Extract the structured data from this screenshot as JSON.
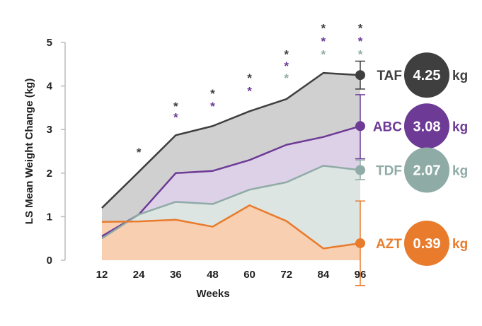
{
  "chart_data": {
    "type": "area",
    "xlabel": "Weeks",
    "ylabel": "LS Mean Weight Change (kg)",
    "x": [
      12,
      24,
      36,
      48,
      60,
      72,
      84,
      96
    ],
    "x_ticks": [
      "12",
      "24",
      "36",
      "48",
      "60",
      "72",
      "84",
      "96"
    ],
    "y_ticks": [
      "0",
      "1",
      "2",
      "3",
      "4",
      "5"
    ],
    "ylim": [
      0,
      5
    ],
    "xlim": [
      0,
      96
    ],
    "grid": false,
    "series": [
      {
        "name": "TAF",
        "values": [
          1.2,
          2.03,
          2.87,
          3.08,
          3.42,
          3.7,
          4.3,
          4.25
        ],
        "final_value": "4.25",
        "unit": "kg",
        "color": "#3f3f3f",
        "fill": "#d0d0d0",
        "error_bar_96": [
          3.93,
          4.57
        ]
      },
      {
        "name": "ABC",
        "values": [
          0.55,
          1.05,
          2.0,
          2.05,
          2.3,
          2.65,
          2.83,
          3.08
        ],
        "final_value": "3.08",
        "unit": "kg",
        "color": "#6d3a96",
        "fill": "#ddd1e8",
        "error_bar_96": [
          2.33,
          3.8
        ]
      },
      {
        "name": "TDF",
        "values": [
          0.5,
          1.05,
          1.34,
          1.29,
          1.62,
          1.79,
          2.17,
          2.07
        ],
        "final_value": "2.07",
        "unit": "kg",
        "color": "#8faba6",
        "fill": "#dde5e3",
        "error_bar_96": [
          1.85,
          2.3
        ]
      },
      {
        "name": "AZT",
        "values": [
          0.88,
          0.89,
          0.93,
          0.77,
          1.26,
          0.9,
          0.27,
          0.39
        ],
        "final_value": "0.39",
        "unit": "kg",
        "color": "#e87b2c",
        "fill": "#f8cfb1",
        "error_bar_96": [
          -0.58,
          1.36
        ]
      }
    ],
    "significance_markers": [
      {
        "x": 24,
        "stars": [
          {
            "color": "#3f3f3f",
            "y": 2.55
          }
        ]
      },
      {
        "x": 36,
        "stars": [
          {
            "color": "#3f3f3f",
            "y": 3.6
          },
          {
            "color": "#6d3a96",
            "y": 3.35
          }
        ]
      },
      {
        "x": 48,
        "stars": [
          {
            "color": "#3f3f3f",
            "y": 3.9
          },
          {
            "color": "#6d3a96",
            "y": 3.6
          }
        ]
      },
      {
        "x": 60,
        "stars": [
          {
            "color": "#3f3f3f",
            "y": 4.25
          },
          {
            "color": "#6d3a96",
            "y": 3.95
          }
        ]
      },
      {
        "x": 72,
        "stars": [
          {
            "color": "#3f3f3f",
            "y": 4.8
          },
          {
            "color": "#6d3a96",
            "y": 4.53
          },
          {
            "color": "#8faba6",
            "y": 4.25
          }
        ]
      },
      {
        "x": 84,
        "stars": [
          {
            "color": "#3f3f3f",
            "y": 5.4
          },
          {
            "color": "#6d3a96",
            "y": 5.1
          },
          {
            "color": "#8faba6",
            "y": 4.8
          }
        ]
      },
      {
        "x": 96,
        "stars": [
          {
            "color": "#3f3f3f",
            "y": 5.4
          },
          {
            "color": "#6d3a96",
            "y": 5.1
          },
          {
            "color": "#8faba6",
            "y": 4.8
          }
        ]
      }
    ],
    "star_symbol": "*"
  }
}
